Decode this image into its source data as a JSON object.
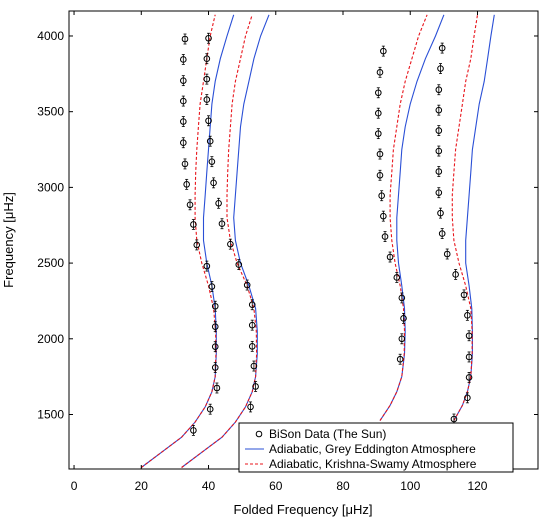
{
  "chart_data": {
    "type": "scatter",
    "xlabel": "Folded Frequency [μHz]",
    "ylabel": "Frequency [μHz]",
    "xlim": [
      -1.5,
      138
    ],
    "ylim": [
      1140,
      4165
    ],
    "x_ticks": [
      0,
      20,
      40,
      60,
      80,
      100,
      120
    ],
    "y_ticks": [
      1500,
      2000,
      2500,
      3000,
      3500,
      4000
    ],
    "grid": false,
    "legend_position": "bottom-right",
    "colors": {
      "data": "#000000",
      "grey": "#2a4fd6",
      "krishna": "#e8141b"
    },
    "series": [
      {
        "name": "BiSon Data (The Sun)",
        "style": "markers",
        "branches": [
          [
            [
              35.5,
              1395
            ],
            [
              40.5,
              1535
            ],
            [
              42.5,
              1675
            ],
            [
              42,
              1810
            ],
            [
              42,
              1948
            ],
            [
              42,
              2080
            ],
            [
              42,
              2215
            ],
            [
              41,
              2345
            ],
            [
              39.5,
              2480
            ],
            [
              36.5,
              2620
            ],
            [
              35.5,
              2755
            ],
            [
              34.5,
              2885
            ],
            [
              33.5,
              3020
            ],
            [
              33,
              3155
            ],
            [
              32.5,
              3295
            ],
            [
              32.5,
              3435
            ],
            [
              32.5,
              3570
            ],
            [
              32.5,
              3705
            ],
            [
              32.5,
              3845
            ],
            [
              33,
              3980
            ]
          ],
          [
            [
              52.5,
              1550
            ],
            [
              54,
              1685
            ],
            [
              53.5,
              1820
            ],
            [
              53,
              1950
            ],
            [
              53,
              2090
            ],
            [
              53,
              2225
            ],
            [
              51.5,
              2355
            ],
            [
              49,
              2490
            ],
            [
              46.5,
              2625
            ],
            [
              44,
              2760
            ],
            [
              43,
              2895
            ],
            [
              41.5,
              3030
            ],
            [
              41,
              3170
            ],
            [
              40.5,
              3305
            ],
            [
              40,
              3440
            ],
            [
              39.5,
              3580
            ],
            [
              39.5,
              3715
            ],
            [
              39.5,
              3850
            ],
            [
              40,
              3985
            ]
          ],
          [
            [
              97,
              1865
            ],
            [
              97.5,
              2000
            ],
            [
              98,
              2135
            ],
            [
              97.5,
              2270
            ],
            [
              96,
              2405
            ],
            [
              94,
              2540
            ],
            [
              92.5,
              2675
            ],
            [
              92,
              2810
            ],
            [
              91.5,
              2945
            ],
            [
              91,
              3080
            ],
            [
              91,
              3220
            ],
            [
              90.5,
              3355
            ],
            [
              90.5,
              3490
            ],
            [
              90.5,
              3625
            ],
            [
              91,
              3760
            ],
            [
              92,
              3900
            ]
          ],
          [
            [
              113,
              1470
            ],
            [
              117,
              1610
            ],
            [
              117.5,
              1745
            ],
            [
              117.5,
              1880
            ],
            [
              117.5,
              2020
            ],
            [
              117,
              2155
            ],
            [
              116,
              2290
            ],
            [
              113.5,
              2425
            ],
            [
              111,
              2560
            ],
            [
              109.5,
              2695
            ],
            [
              109,
              2830
            ],
            [
              108.5,
              2965
            ],
            [
              108.5,
              3105
            ],
            [
              108.5,
              3240
            ],
            [
              108.5,
              3375
            ],
            [
              108.5,
              3510
            ],
            [
              108.5,
              3645
            ],
            [
              109,
              3785
            ],
            [
              109.5,
              3920
            ]
          ]
        ]
      },
      {
        "name": "Adiabatic, Grey Eddington Atmosphere",
        "style": "solid",
        "branches": [
          [
            [
              20,
              1150
            ],
            [
              26,
              1250
            ],
            [
              32,
              1350
            ],
            [
              36,
              1450
            ],
            [
              39,
              1550
            ],
            [
              41,
              1650
            ],
            [
              42,
              1750
            ],
            [
              42.3,
              1900
            ],
            [
              42.3,
              2050
            ],
            [
              42,
              2200
            ],
            [
              41,
              2350
            ],
            [
              39.5,
              2500
            ],
            [
              38.5,
              2650
            ],
            [
              38.5,
              2800
            ],
            [
              39,
              2950
            ],
            [
              39.5,
              3100
            ],
            [
              40,
              3250
            ],
            [
              40.5,
              3400
            ],
            [
              41,
              3550
            ],
            [
              42,
              3700
            ],
            [
              43.5,
              3850
            ],
            [
              45.5,
              4000
            ],
            [
              47.5,
              4140
            ]
          ],
          [
            [
              32,
              1150
            ],
            [
              38,
              1250
            ],
            [
              44,
              1350
            ],
            [
              48,
              1450
            ],
            [
              51,
              1550
            ],
            [
              53,
              1650
            ],
            [
              54,
              1750
            ],
            [
              54.5,
              1900
            ],
            [
              54.5,
              2050
            ],
            [
              54,
              2200
            ],
            [
              52,
              2350
            ],
            [
              49.5,
              2500
            ],
            [
              48,
              2650
            ],
            [
              47.5,
              2800
            ],
            [
              48,
              2950
            ],
            [
              48.5,
              3100
            ],
            [
              49,
              3250
            ],
            [
              49.5,
              3400
            ],
            [
              50.5,
              3550
            ],
            [
              52,
              3700
            ],
            [
              53.5,
              3850
            ],
            [
              55.5,
              4000
            ],
            [
              58,
              4140
            ]
          ],
          [
            [
              91,
              1460
            ],
            [
              94,
              1560
            ],
            [
              96,
              1650
            ],
            [
              97.5,
              1750
            ],
            [
              98.3,
              1900
            ],
            [
              98.5,
              2050
            ],
            [
              98.3,
              2200
            ],
            [
              97.5,
              2350
            ],
            [
              96.5,
              2500
            ],
            [
              96,
              2650
            ],
            [
              96,
              2800
            ],
            [
              96.5,
              2950
            ],
            [
              97,
              3100
            ],
            [
              97.5,
              3250
            ],
            [
              98.5,
              3400
            ],
            [
              100,
              3550
            ],
            [
              102,
              3700
            ],
            [
              104.5,
              3850
            ],
            [
              107.5,
              4000
            ],
            [
              110,
              4140
            ]
          ],
          [
            [
              113,
              1460
            ],
            [
              115.5,
              1560
            ],
            [
              117,
              1650
            ],
            [
              118,
              1750
            ],
            [
              118.5,
              1900
            ],
            [
              118.5,
              2050
            ],
            [
              118.3,
              2200
            ],
            [
              117.5,
              2350
            ],
            [
              116.5,
              2500
            ],
            [
              116.5,
              2650
            ],
            [
              117,
              2800
            ],
            [
              117.5,
              2950
            ],
            [
              118,
              3100
            ],
            [
              118.5,
              3250
            ],
            [
              119.5,
              3400
            ],
            [
              120.5,
              3550
            ],
            [
              122,
              3700
            ],
            [
              123,
              3850
            ],
            [
              124,
              4000
            ],
            [
              125,
              4140
            ]
          ]
        ]
      },
      {
        "name": "Adiabatic, Krishna-Swamy Atmosphere",
        "style": "dashed",
        "branches": [
          [
            [
              20,
              1150
            ],
            [
              26,
              1250
            ],
            [
              32,
              1350
            ],
            [
              36,
              1450
            ],
            [
              39,
              1550
            ],
            [
              41,
              1650
            ],
            [
              42,
              1750
            ],
            [
              42.2,
              1900
            ],
            [
              42.1,
              2050
            ],
            [
              41.5,
              2200
            ],
            [
              40,
              2350
            ],
            [
              38,
              2500
            ],
            [
              36.5,
              2650
            ],
            [
              36,
              2800
            ],
            [
              36,
              2950
            ],
            [
              36.2,
              3100
            ],
            [
              36.5,
              3250
            ],
            [
              37,
              3400
            ],
            [
              37.5,
              3550
            ],
            [
              38.5,
              3700
            ],
            [
              39.5,
              3850
            ],
            [
              40.5,
              4000
            ],
            [
              42,
              4140
            ]
          ],
          [
            [
              32,
              1150
            ],
            [
              38,
              1250
            ],
            [
              44,
              1350
            ],
            [
              48,
              1450
            ],
            [
              51,
              1550
            ],
            [
              53,
              1650
            ],
            [
              54,
              1750
            ],
            [
              54.3,
              1900
            ],
            [
              54.2,
              2050
            ],
            [
              53.5,
              2200
            ],
            [
              51.5,
              2350
            ],
            [
              48.5,
              2500
            ],
            [
              46.5,
              2650
            ],
            [
              45.5,
              2800
            ],
            [
              45.5,
              2950
            ],
            [
              45.7,
              3100
            ],
            [
              46,
              3250
            ],
            [
              46.5,
              3400
            ],
            [
              47,
              3550
            ],
            [
              48,
              3700
            ],
            [
              49.5,
              3850
            ],
            [
              51,
              4000
            ],
            [
              53,
              4140
            ]
          ],
          [
            [
              91,
              1460
            ],
            [
              94,
              1560
            ],
            [
              96,
              1650
            ],
            [
              97.5,
              1750
            ],
            [
              98.2,
              1900
            ],
            [
              98.3,
              2050
            ],
            [
              98,
              2200
            ],
            [
              97,
              2350
            ],
            [
              95.5,
              2500
            ],
            [
              94.5,
              2650
            ],
            [
              94,
              2800
            ],
            [
              94,
              2950
            ],
            [
              94.5,
              3100
            ],
            [
              95,
              3250
            ],
            [
              96,
              3400
            ],
            [
              97,
              3550
            ],
            [
              98.5,
              3700
            ],
            [
              100.5,
              3850
            ],
            [
              102.5,
              4000
            ],
            [
              105,
              4140
            ]
          ],
          [
            [
              113,
              1460
            ],
            [
              115.5,
              1560
            ],
            [
              117,
              1650
            ],
            [
              118,
              1750
            ],
            [
              118.4,
              1900
            ],
            [
              118.4,
              2050
            ],
            [
              118,
              2200
            ],
            [
              116.5,
              2350
            ],
            [
              114.5,
              2500
            ],
            [
              113,
              2650
            ],
            [
              112.5,
              2800
            ],
            [
              112.5,
              2950
            ],
            [
              113,
              3100
            ],
            [
              113.5,
              3250
            ],
            [
              114.5,
              3400
            ],
            [
              115.5,
              3550
            ],
            [
              116.5,
              3700
            ],
            [
              118,
              3850
            ],
            [
              119,
              4000
            ],
            [
              120,
              4140
            ]
          ]
        ]
      }
    ]
  }
}
